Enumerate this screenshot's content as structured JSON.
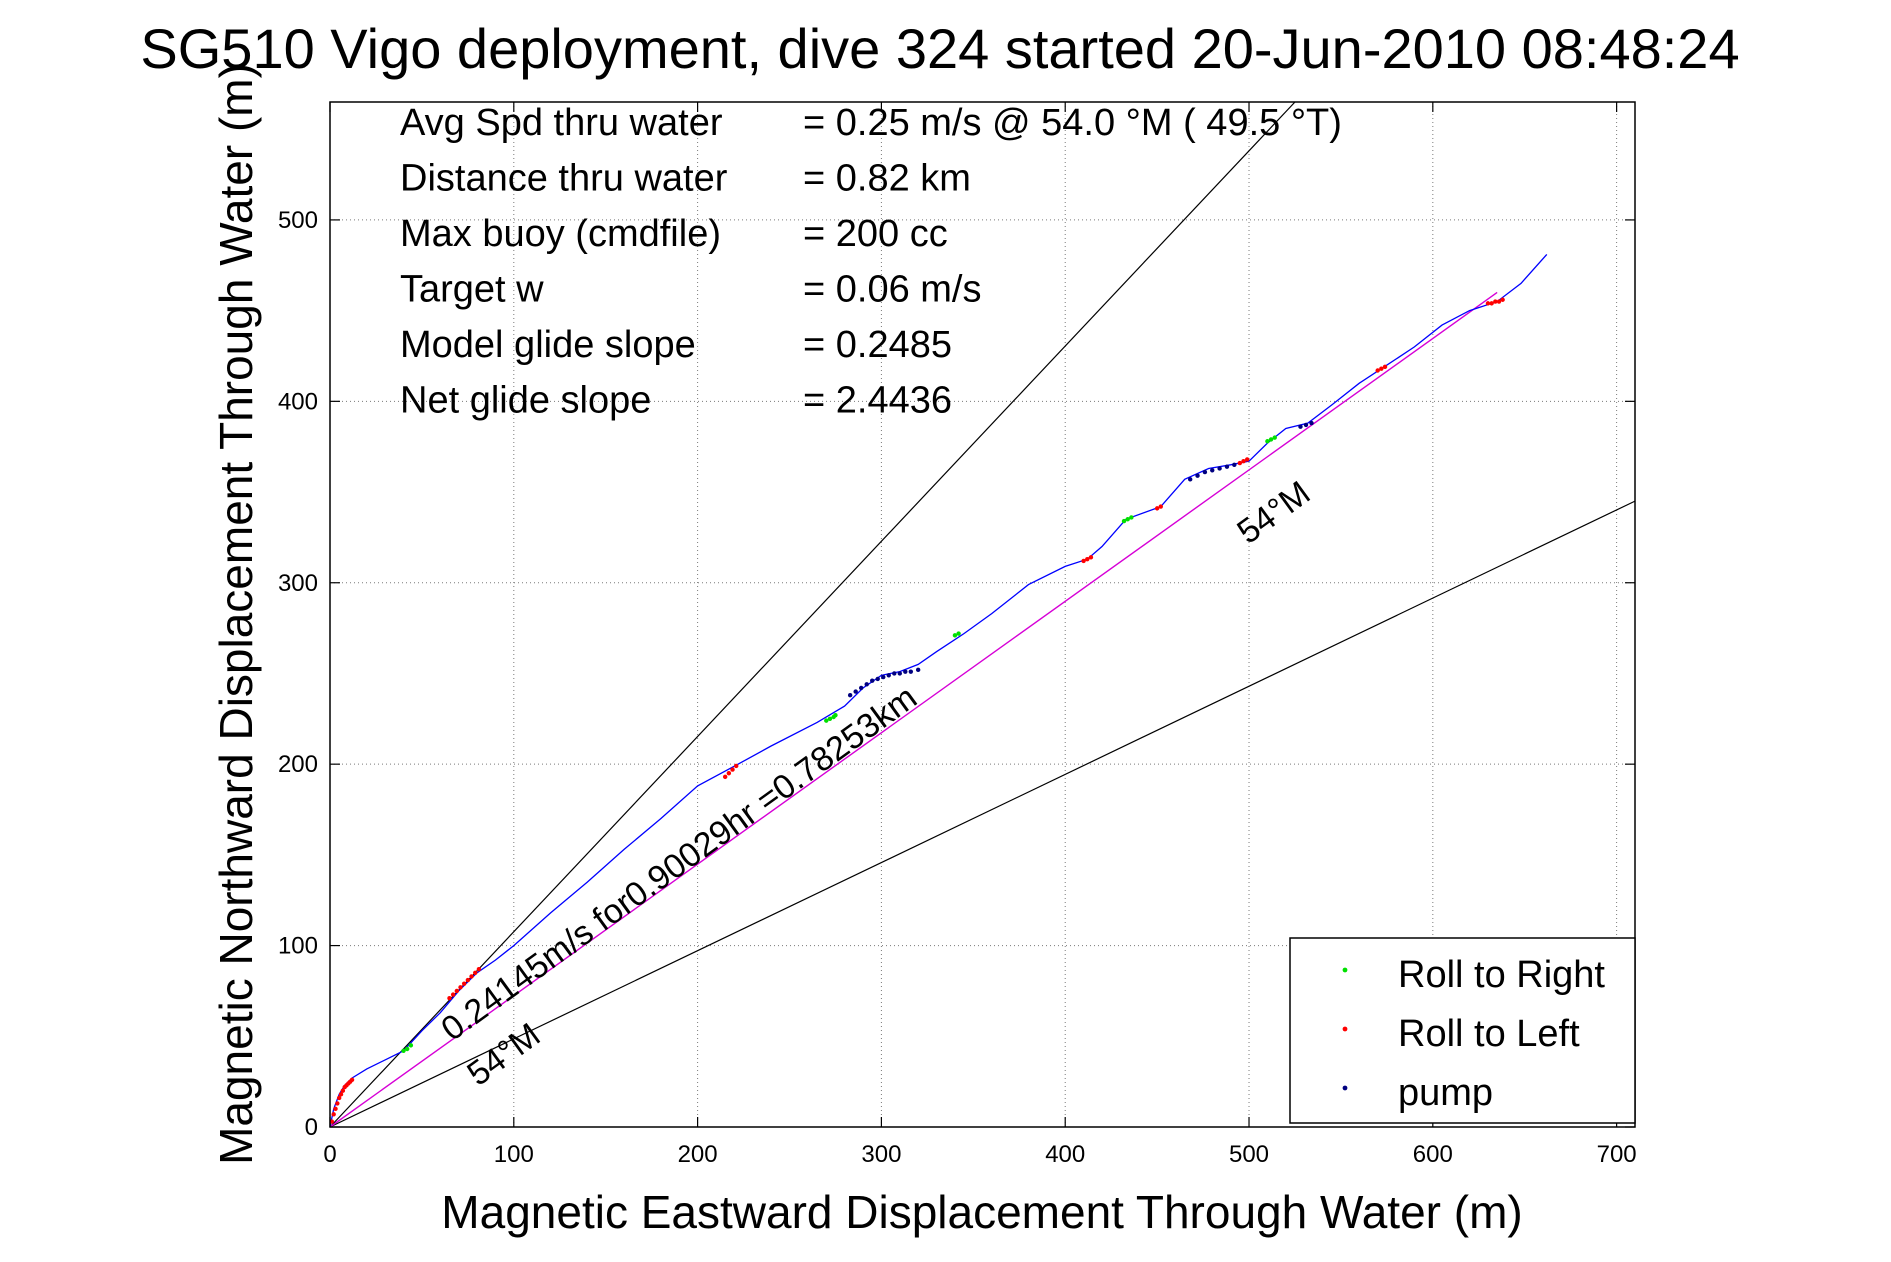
{
  "chart_data": {
    "type": "line",
    "title": "SG510 Vigo deployment, dive 324 started 20-Jun-2010 08:48:24",
    "xlabel": "Magnetic Eastward Displacement Through Water (m)",
    "ylabel": "Magnetic Northward Displacement Through Water (m)",
    "xlim": [
      0,
      710
    ],
    "ylim": [
      0,
      565
    ],
    "xticks": [
      "0",
      "100",
      "200",
      "300",
      "400",
      "500",
      "600",
      "700"
    ],
    "yticks": [
      "0",
      "100",
      "200",
      "300",
      "400",
      "500"
    ],
    "xtick_values": [
      0,
      100,
      200,
      300,
      400,
      500,
      600,
      700
    ],
    "ytick_values": [
      0,
      100,
      200,
      300,
      400,
      500
    ],
    "grid": true,
    "legend_position": "bottom-right",
    "stats": [
      {
        "label": "Avg Spd thru water",
        "value": "=  0.25 m/s @  54.0 °M ( 49.5 °T)"
      },
      {
        "label": "Distance thru water",
        "value": "=  0.82 km"
      },
      {
        "label": "Max buoy (cmdfile)",
        "value": "= 200 cc"
      },
      {
        "label": "Target w",
        "value": "= 0.06 m/s"
      },
      {
        "label": "Model glide slope",
        "value": "= 0.2485"
      },
      {
        "label": "Net glide slope",
        "value": "= 2.4436"
      }
    ],
    "annotations": {
      "speed_label": "0.24145m/s for0.90029hr =0.78253km",
      "heading_label_upper": "54°M",
      "heading_label_lower": "54°M"
    },
    "reference_lines": [
      {
        "x": [
          0,
          525
        ],
        "y": [
          0,
          565
        ]
      },
      {
        "x": [
          0,
          710
        ],
        "y": [
          0,
          345
        ]
      }
    ],
    "net_line": {
      "x": [
        0,
        635
      ],
      "y": [
        0,
        460
      ],
      "color": "#d600d6"
    },
    "track": {
      "color": "#0000ff",
      "x": [
        0,
        2,
        5,
        8,
        12,
        20,
        30,
        40,
        50,
        60,
        70,
        80,
        90,
        100,
        120,
        140,
        160,
        180,
        200,
        222,
        240,
        265,
        280,
        290,
        300,
        310,
        320,
        330,
        345,
        360,
        380,
        400,
        412,
        420,
        433,
        452,
        465,
        478,
        490,
        500,
        510,
        520,
        532,
        545,
        560,
        575,
        590,
        605,
        620,
        635,
        648,
        662
      ],
      "y": [
        0,
        10,
        18,
        23,
        27,
        32,
        37,
        42,
        53,
        63,
        75,
        85,
        92,
        100,
        118,
        135,
        153,
        170,
        188,
        200,
        210,
        223,
        232,
        242,
        249,
        251,
        255,
        262,
        272,
        283,
        299,
        309,
        313,
        320,
        335,
        342,
        357,
        363,
        365,
        367,
        377,
        385,
        388,
        398,
        410,
        420,
        430,
        442,
        450,
        455,
        465,
        481
      ]
    },
    "series": [
      {
        "name": "Roll to Right",
        "color": "#00e000",
        "x": [
          40,
          42,
          44,
          270,
          272,
          274,
          275,
          340,
          342,
          432,
          434,
          436,
          510,
          512,
          514
        ],
        "y": [
          42,
          43,
          45,
          224,
          225,
          226,
          227,
          271,
          272,
          334,
          335,
          336,
          378,
          379,
          380
        ]
      },
      {
        "name": "Roll to Left",
        "color": "#ff0000",
        "x": [
          1,
          2,
          3,
          4,
          5,
          6,
          7,
          8,
          9,
          10,
          11,
          12,
          65,
          67,
          69,
          71,
          73,
          75,
          77,
          79,
          81,
          215,
          217,
          219,
          221,
          410,
          412,
          414,
          450,
          452,
          495,
          497,
          499,
          570,
          572,
          574,
          630,
          632,
          634,
          636,
          638
        ],
        "y": [
          3,
          7,
          10,
          13,
          16,
          18,
          20,
          22,
          23,
          24,
          25,
          26,
          71,
          73,
          75,
          77,
          79,
          81,
          83,
          85,
          87,
          193,
          195,
          197,
          199,
          312,
          313,
          314,
          341,
          342,
          366,
          367,
          368,
          417,
          418,
          419,
          454,
          454,
          455,
          455,
          456
        ]
      },
      {
        "name": "pump",
        "color": "#000080",
        "x": [
          283,
          286,
          289,
          292,
          295,
          298,
          301,
          304,
          307,
          310,
          313,
          316,
          320,
          468,
          472,
          476,
          480,
          484,
          488,
          492,
          528,
          531,
          534
        ],
        "y": [
          238,
          240,
          242,
          244,
          246,
          247,
          248,
          249,
          250,
          250,
          251,
          251,
          252,
          357,
          359,
          361,
          362,
          363,
          364,
          365,
          386,
          387,
          388
        ]
      }
    ]
  }
}
